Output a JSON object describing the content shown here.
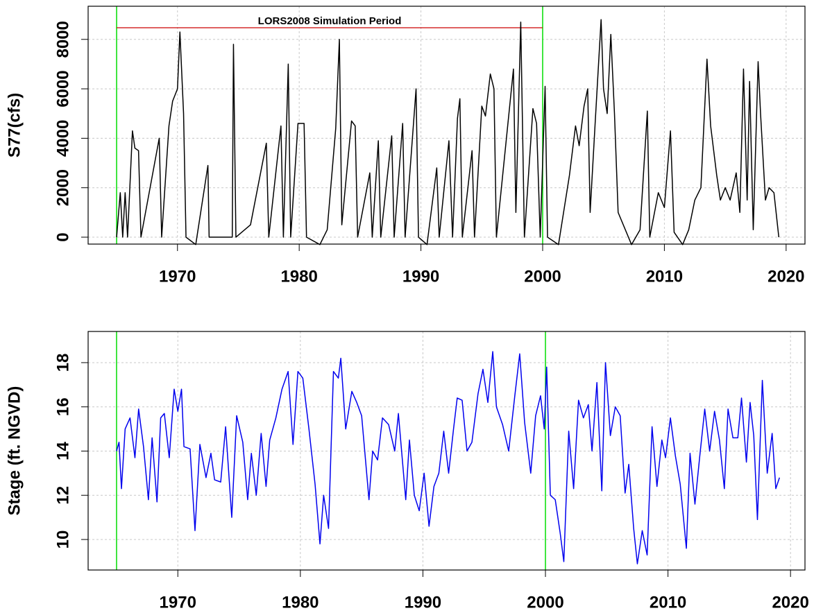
{
  "chart_data": [
    {
      "type": "line",
      "ylabel": "S77(cfs)",
      "xlim": [
        1962.66,
        2021.55
      ],
      "ylim": [
        -280,
        9340
      ],
      "xticks": [
        1970,
        1980,
        1990,
        2000,
        2010,
        2020
      ],
      "yticks": [
        0,
        2000,
        4000,
        6000,
        8000
      ],
      "grid": true,
      "vlines": [
        1965,
        2000
      ],
      "vline_color": "#00dd00",
      "period": {
        "label": "LORS2008 Simulation Period",
        "x": [
          1965,
          2000
        ],
        "y": 8470,
        "color": "#cc0000"
      },
      "series": [
        {
          "name": "S77",
          "color": "#000000",
          "x": [
            1965.0,
            1965.3,
            1965.5,
            1965.7,
            1965.9,
            1966.3,
            1966.5,
            1966.8,
            1967.0,
            1968.5,
            1968.7,
            1969.3,
            1969.6,
            1970.0,
            1970.2,
            1970.5,
            1970.7,
            1971.5,
            1972.5,
            1972.6,
            1974.5,
            1974.6,
            1974.8,
            1976.0,
            1977.3,
            1977.5,
            1978.5,
            1978.7,
            1979.1,
            1979.3,
            1979.9,
            1980.1,
            1980.4,
            1980.6,
            1981.7,
            1982.3,
            1983.0,
            1983.3,
            1983.5,
            1984.3,
            1984.6,
            1984.8,
            1985.8,
            1986.0,
            1986.5,
            1986.7,
            1987.6,
            1987.8,
            1988.5,
            1988.7,
            1989.6,
            1989.8,
            1990.5,
            1991.3,
            1991.5,
            1992.3,
            1992.6,
            1993.0,
            1993.2,
            1993.4,
            1994.2,
            1994.4,
            1995.0,
            1995.3,
            1995.7,
            1996.0,
            1996.2,
            1997.6,
            1997.8,
            1998.2,
            1998.5,
            1999.2,
            1999.5,
            1999.8,
            2000.2,
            2000.4,
            2001.3,
            2002.2,
            2002.7,
            2003.0,
            2003.4,
            2003.7,
            2003.9,
            2004.3,
            2004.8,
            2005.0,
            2005.3,
            2005.6,
            2005.9,
            2006.2,
            2007.3,
            2008.0,
            2008.6,
            2008.8,
            2009.5,
            2010.0,
            2010.5,
            2010.8,
            2011.5,
            2012.0,
            2012.5,
            2013.0,
            2013.5,
            2013.8,
            2014.3,
            2014.6,
            2015.0,
            2015.4,
            2015.9,
            2016.2,
            2016.5,
            2016.8,
            2017.0,
            2017.3,
            2017.7,
            2017.9,
            2018.3,
            2018.6,
            2019.0,
            2019.4
          ],
          "values": [
            0,
            1800,
            0,
            1800,
            0,
            4300,
            3600,
            3500,
            0,
            4000,
            0,
            4500,
            5500,
            6000,
            8300,
            5000,
            0,
            -300,
            2900,
            0,
            0,
            7800,
            0,
            500,
            3800,
            0,
            4500,
            0,
            7000,
            0,
            4600,
            4600,
            4600,
            0,
            -300,
            300,
            4400,
            8000,
            500,
            4700,
            4500,
            0,
            2600,
            0,
            3900,
            0,
            4100,
            0,
            4600,
            0,
            6000,
            0,
            -300,
            2800,
            0,
            3900,
            0,
            4800,
            5600,
            0,
            3500,
            0,
            5300,
            4900,
            6600,
            6000,
            0,
            6800,
            1000,
            8700,
            0,
            5200,
            4600,
            0,
            6100,
            0,
            -300,
            2500,
            4500,
            3700,
            5300,
            6000,
            1000,
            4500,
            8800,
            6000,
            5000,
            8200,
            5000,
            1000,
            -300,
            300,
            5100,
            0,
            1800,
            1200,
            4300,
            200,
            -300,
            300,
            1500,
            2000,
            7200,
            4500,
            2500,
            1500,
            2000,
            1500,
            2600,
            1000,
            6800,
            1500,
            6300,
            300,
            7100,
            5000,
            1500,
            2000,
            1800,
            0
          ]
        }
      ]
    },
    {
      "type": "line",
      "ylabel": "Stage (ft. NGVD)",
      "xlim": [
        1962.68,
        2021.18
      ],
      "ylim": [
        8.62,
        19.41
      ],
      "xticks": [
        1970,
        1980,
        1990,
        2000,
        2010,
        2020
      ],
      "yticks": [
        10,
        12,
        14,
        16,
        18
      ],
      "grid": true,
      "vlines": [
        1965,
        2000
      ],
      "vline_color": "#00dd00",
      "series": [
        {
          "name": "Stage",
          "color": "#0000ee",
          "x": [
            1965.0,
            1965.2,
            1965.4,
            1965.7,
            1966.1,
            1966.5,
            1966.8,
            1967.2,
            1967.6,
            1967.9,
            1968.3,
            1968.6,
            1968.9,
            1969.3,
            1969.7,
            1970.0,
            1970.3,
            1970.5,
            1971.0,
            1971.4,
            1971.8,
            1972.3,
            1972.7,
            1973.0,
            1973.5,
            1973.9,
            1974.4,
            1974.8,
            1975.3,
            1975.7,
            1976.0,
            1976.4,
            1976.8,
            1977.2,
            1977.5,
            1978.0,
            1978.5,
            1979.0,
            1979.4,
            1979.8,
            1980.2,
            1980.7,
            1981.2,
            1981.6,
            1981.9,
            1982.3,
            1982.7,
            1983.1,
            1983.3,
            1983.7,
            1984.2,
            1984.6,
            1985.0,
            1985.6,
            1985.9,
            1986.3,
            1986.7,
            1987.2,
            1987.7,
            1988.0,
            1988.6,
            1988.9,
            1989.3,
            1989.7,
            1990.1,
            1990.5,
            1990.9,
            1991.3,
            1991.7,
            1992.1,
            1992.5,
            1992.8,
            1993.2,
            1993.6,
            1994.0,
            1994.5,
            1994.9,
            1995.3,
            1995.7,
            1996.0,
            1996.5,
            1997.0,
            1997.5,
            1997.9,
            1998.3,
            1998.8,
            1999.2,
            1999.6,
            1999.9,
            2000.1,
            2000.4,
            2000.8,
            2001.2,
            2001.5,
            2001.9,
            2002.3,
            2002.7,
            2003.1,
            2003.5,
            2003.8,
            2004.2,
            2004.6,
            2004.9,
            2005.3,
            2005.7,
            2006.1,
            2006.5,
            2006.8,
            2007.2,
            2007.5,
            2007.9,
            2008.3,
            2008.7,
            2009.1,
            2009.5,
            2009.8,
            2010.2,
            2010.6,
            2011.0,
            2011.5,
            2011.8,
            2012.2,
            2012.6,
            2013.0,
            2013.4,
            2013.8,
            2014.2,
            2014.6,
            2014.9,
            2015.3,
            2015.7,
            2016.0,
            2016.4,
            2016.7,
            2017.0,
            2017.3,
            2017.7,
            2018.1,
            2018.5,
            2018.8,
            2019.1
          ],
          "values": [
            14.0,
            14.4,
            12.3,
            15.0,
            15.5,
            13.7,
            15.9,
            14.2,
            11.8,
            14.6,
            11.7,
            15.5,
            15.7,
            13.7,
            16.8,
            15.8,
            16.8,
            14.2,
            14.1,
            10.4,
            14.3,
            12.8,
            13.9,
            12.7,
            12.6,
            15.1,
            11.0,
            15.6,
            14.4,
            11.8,
            13.9,
            12.0,
            14.8,
            12.4,
            14.5,
            15.5,
            16.8,
            17.6,
            14.3,
            17.6,
            17.3,
            15.0,
            12.5,
            9.8,
            12.0,
            10.5,
            17.6,
            17.3,
            18.2,
            15.0,
            16.7,
            16.2,
            15.6,
            11.8,
            14.0,
            13.6,
            15.5,
            15.2,
            14.0,
            15.7,
            11.8,
            14.5,
            12.0,
            11.3,
            13.0,
            10.6,
            12.4,
            13.0,
            14.9,
            13.0,
            15.0,
            16.4,
            16.3,
            14.0,
            14.4,
            16.6,
            17.7,
            16.2,
            18.5,
            16.0,
            15.2,
            14.0,
            16.5,
            18.4,
            15.3,
            13.0,
            15.6,
            16.5,
            15.0,
            17.8,
            12.0,
            11.8,
            10.3,
            9.0,
            14.9,
            12.3,
            16.3,
            15.5,
            16.1,
            14.0,
            17.1,
            12.2,
            18.0,
            14.7,
            16.0,
            15.6,
            12.1,
            13.4,
            10.5,
            8.9,
            10.4,
            9.3,
            15.1,
            12.4,
            14.5,
            13.7,
            15.5,
            13.8,
            12.5,
            9.6,
            13.9,
            11.6,
            13.8,
            15.9,
            14.0,
            15.8,
            14.5,
            12.3,
            15.9,
            14.6,
            14.6,
            16.4,
            13.5,
            16.2,
            14.7,
            10.9,
            17.2,
            13.0,
            14.8,
            12.3,
            12.8
          ]
        }
      ]
    }
  ]
}
